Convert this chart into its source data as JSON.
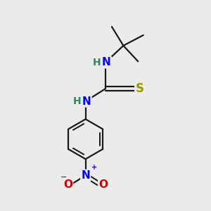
{
  "background_color": "#ebebeb",
  "bond_color": "#1a1a1a",
  "bond_width": 1.6,
  "atom_colors": {
    "N": "#0000ff",
    "S": "#999900",
    "O": "#cc0000",
    "H": "#2e8b57",
    "C": "#1a1a1a",
    "Np": "#0000ff",
    "Om": "#cc0000"
  },
  "font_size": 11,
  "fig_width": 3.0,
  "fig_height": 3.0,
  "dpi": 100
}
